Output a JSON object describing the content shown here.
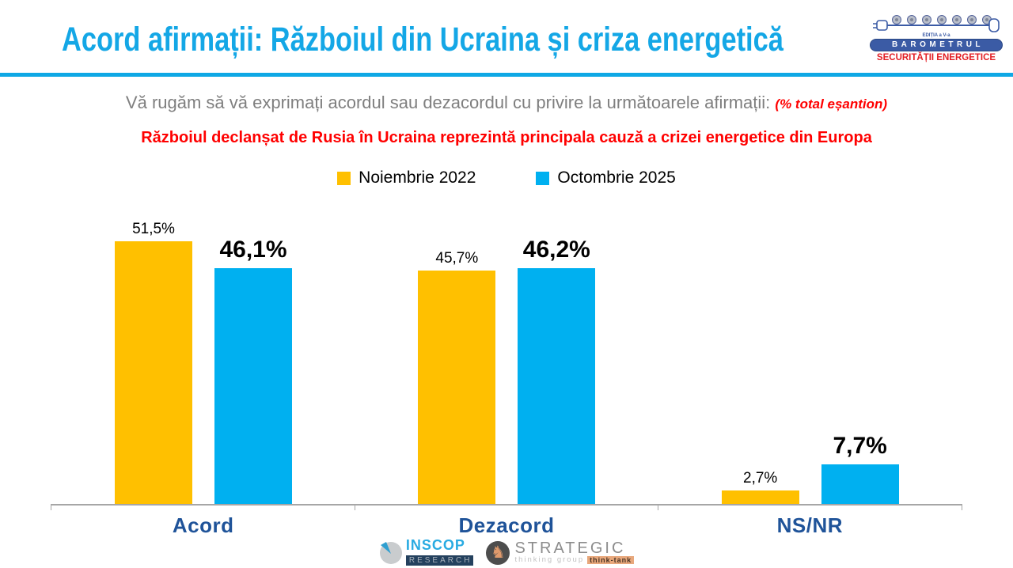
{
  "header": {
    "title": "Acord afirmații: Războiul din Ucraina și criza energetică",
    "logo": {
      "edition": "EDIȚIA a V-a",
      "line1": "BAROMETRUL",
      "line2": "SECURITĂȚII ENERGETICE"
    }
  },
  "subtitle": {
    "main": "Vă rugăm să vă exprimați acordul sau dezacordul cu privire la următoarele afirmații:",
    "note": "(% total eșantion)"
  },
  "statement": "Războiul declanșat de Rusia în Ucraina reprezintă principala cauză a crizei energetice din Europa",
  "chart_data": {
    "type": "bar",
    "title": "Acord afirmații: Războiul din Ucraina și criza energetică",
    "categories": [
      "Acord",
      "Dezacord",
      "NS/NR"
    ],
    "series": [
      {
        "name": "Noiembrie 2022",
        "color": "#FFC000",
        "values": [
          51.5,
          45.7,
          2.7
        ],
        "labels": [
          "51,5%",
          "45,7%",
          "2,7%"
        ]
      },
      {
        "name": "Octombrie 2025",
        "color": "#00B0F0",
        "values": [
          46.1,
          46.2,
          7.7
        ],
        "labels": [
          "46,1%",
          "46,2%",
          "7,7%"
        ]
      }
    ],
    "ylim": [
      0,
      55
    ],
    "grid": false,
    "legend_position": "top",
    "value_label_style": {
      "series_0": "regular 19px",
      "series_1": "bold 30px"
    }
  },
  "footer": {
    "inscop": {
      "name": "INSCOP",
      "sub": "RESEARCH"
    },
    "strategic": {
      "name": "STRATEGIC",
      "sub": "thinking group",
      "badge": "think-tank"
    }
  },
  "colors": {
    "title_blue": "#14A7E6",
    "rule_blue": "#0FA8E5",
    "accent_red": "#FF0000",
    "bar_yellow": "#FFC000",
    "bar_blue": "#00B0F0",
    "category_blue": "#1F5399",
    "axis_gray": "#A6A6A6",
    "subtitle_gray": "#7F7F7F",
    "logo_navy": "#3B5BA5",
    "logo_red": "#E31E24"
  }
}
